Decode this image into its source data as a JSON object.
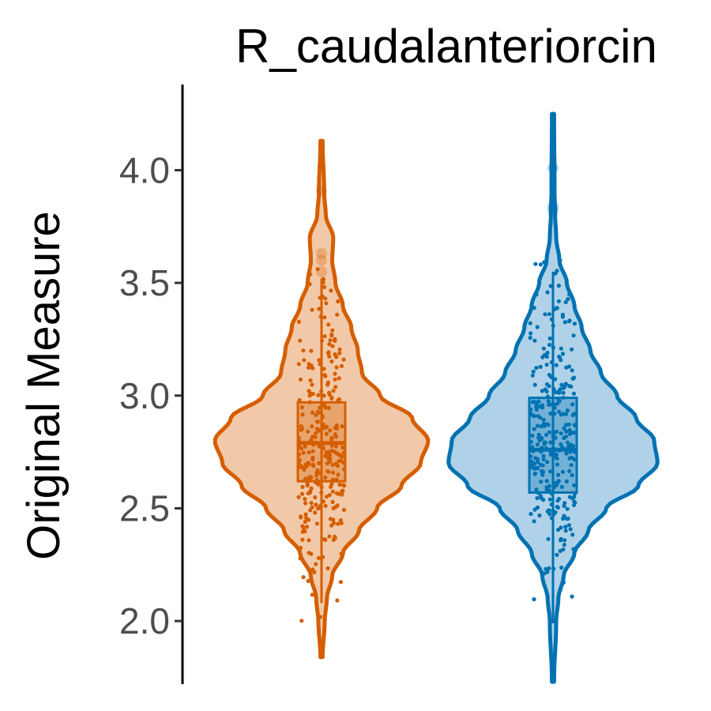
{
  "chart_data": {
    "type": "violin",
    "title": "R_caudalanteriorcin",
    "xlabel": "",
    "ylabel": "Original Measure",
    "ylim": [
      1.72,
      4.38
    ],
    "yticks": [
      2.0,
      2.5,
      3.0,
      3.5,
      4.0
    ],
    "ytick_labels": [
      "2.0",
      "2.5",
      "3.0",
      "3.5",
      "4.0"
    ],
    "grid": false,
    "legend": "none",
    "series": [
      {
        "color": "#d55e00",
        "fill": "#f2c9a8",
        "range": [
          1.84,
          4.13
        ],
        "box": {
          "q1": 2.62,
          "median": 2.79,
          "q3": 2.97,
          "whisker_low": 2.08,
          "whisker_high": 3.52
        },
        "outliers": [
          3.55,
          3.6,
          3.63,
          3.91
        ],
        "density": [
          [
            1.84,
            0.01
          ],
          [
            2.0,
            0.03
          ],
          [
            2.1,
            0.05
          ],
          [
            2.2,
            0.1
          ],
          [
            2.3,
            0.2
          ],
          [
            2.4,
            0.35
          ],
          [
            2.5,
            0.52
          ],
          [
            2.6,
            0.75
          ],
          [
            2.7,
            0.93
          ],
          [
            2.8,
            1.0
          ],
          [
            2.9,
            0.85
          ],
          [
            3.0,
            0.55
          ],
          [
            3.1,
            0.38
          ],
          [
            3.2,
            0.34
          ],
          [
            3.3,
            0.28
          ],
          [
            3.4,
            0.2
          ],
          [
            3.5,
            0.13
          ],
          [
            3.6,
            0.1
          ],
          [
            3.7,
            0.11
          ],
          [
            3.8,
            0.04
          ],
          [
            3.9,
            0.025
          ],
          [
            4.13,
            0.01
          ]
        ]
      },
      {
        "color": "#0072b2",
        "fill": "#b0d2e8",
        "range": [
          1.73,
          4.25
        ],
        "box": {
          "q1": 2.57,
          "median": 2.76,
          "q3": 2.99,
          "whisker_low": 1.99,
          "whisker_high": 3.55
        },
        "outliers": [
          3.82,
          3.84,
          4.01
        ],
        "density": [
          [
            1.73,
            0.01
          ],
          [
            2.0,
            0.03
          ],
          [
            2.1,
            0.05
          ],
          [
            2.2,
            0.1
          ],
          [
            2.3,
            0.2
          ],
          [
            2.4,
            0.33
          ],
          [
            2.5,
            0.5
          ],
          [
            2.6,
            0.8
          ],
          [
            2.7,
            0.98
          ],
          [
            2.8,
            0.95
          ],
          [
            2.9,
            0.78
          ],
          [
            3.0,
            0.6
          ],
          [
            3.1,
            0.45
          ],
          [
            3.2,
            0.35
          ],
          [
            3.3,
            0.27
          ],
          [
            3.4,
            0.2
          ],
          [
            3.5,
            0.13
          ],
          [
            3.6,
            0.06
          ],
          [
            3.7,
            0.03
          ],
          [
            3.8,
            0.02
          ],
          [
            3.9,
            0.015
          ],
          [
            4.25,
            0.01
          ]
        ]
      }
    ]
  }
}
